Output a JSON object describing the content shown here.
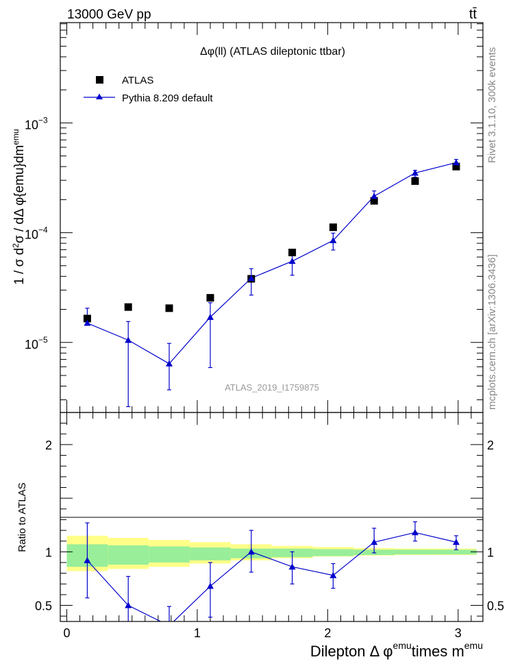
{
  "header": {
    "energy_label": "13000 GeV pp",
    "process_label": "tt̄",
    "side_rivet": "Rivet 3.1.10,  300k events",
    "side_mcplots": "mcplots.cern.ch [arXiv:1306.3436]"
  },
  "colors": {
    "data": "#000000",
    "mc": "#0000cc",
    "band_inner": "#99ee99",
    "band_outer": "#ffff88"
  },
  "chart_data": [
    {
      "type": "scatter",
      "title": "Δφ(ll) (ATLAS dileptonic ttbar)",
      "analysis_label": "ATLAS_2019_I1759875",
      "ylabel": "1 / σ d²σ / dΔ φ{emu}dm^emu",
      "yscale": "log",
      "ylim": [
        2.3e-06,
        0.0082
      ],
      "xlim": [
        -0.05,
        3.19
      ],
      "yticks_major": [
        {
          "value": 1e-05,
          "base": "10",
          "exp": "−5"
        },
        {
          "value": 0.0001,
          "base": "10",
          "exp": "−4"
        },
        {
          "value": 0.001,
          "base": "10",
          "exp": "−3"
        }
      ],
      "legend": [
        {
          "name": "ATLAS",
          "marker": "square"
        },
        {
          "name": "Pythia 8.209 default",
          "marker": "triangle"
        }
      ],
      "series": [
        {
          "name": "ATLAS",
          "x": [
            0.157,
            0.471,
            0.785,
            1.1,
            1.414,
            1.728,
            2.042,
            2.356,
            2.67,
            2.985
          ],
          "y": [
            1.65e-05,
            2.1e-05,
            2.05e-05,
            2.55e-05,
            3.8e-05,
            6.6e-05,
            0.000112,
            0.000195,
            0.000295,
            0.0004
          ]
        },
        {
          "name": "Pythia 8.209 default",
          "x": [
            0.157,
            0.471,
            0.785,
            1.1,
            1.414,
            1.728,
            2.042,
            2.356,
            2.67,
            2.985
          ],
          "y": [
            1.5e-05,
            1.05e-05,
            6.4e-06,
            1.7e-05,
            3.85e-05,
            5.5e-05,
            8.5e-05,
            0.000215,
            0.00035,
            0.000435
          ],
          "err_low": [
            1.45e-05,
            2.6e-06,
            3.7e-06,
            5.9e-06,
            2.7e-05,
            4.1e-05,
            6.95e-05,
            0.000188,
            0.00032,
            0.000405
          ],
          "err_high": [
            2.05e-05,
            1.55e-05,
            9.8e-06,
            2.3e-05,
            4.7e-05,
            6.6e-05,
            9.9e-05,
            0.00024,
            0.00037,
            0.000465
          ]
        }
      ]
    },
    {
      "type": "scatter",
      "ylabel": "Ratio to ATLAS",
      "xlabel_main": "Dilepton Δ φ",
      "xlabel_sup1": "emu",
      "xlabel_mid": "times m",
      "xlabel_sup2": "emu",
      "ylim": [
        0.35,
        2.3
      ],
      "xlim": [
        -0.05,
        3.19
      ],
      "yticks": [
        0.5,
        1,
        2
      ],
      "ytick_labels": [
        "0.5",
        "1",
        "2"
      ],
      "xticks": [
        0,
        1,
        2,
        3
      ],
      "xtick_labels": [
        "0",
        "1",
        "2",
        "3"
      ],
      "band": {
        "edges": [
          0.0,
          0.314,
          0.628,
          0.942,
          1.257,
          1.571,
          1.885,
          2.199,
          2.513,
          2.827,
          3.142
        ],
        "inner_low": [
          0.86,
          0.88,
          0.9,
          0.92,
          0.94,
          0.95,
          0.96,
          0.97,
          0.975,
          0.975
        ],
        "inner_high": [
          1.07,
          1.06,
          1.05,
          1.04,
          1.03,
          1.03,
          1.025,
          1.02,
          1.02,
          1.02
        ],
        "outer_low": [
          0.82,
          0.84,
          0.86,
          0.89,
          0.92,
          0.94,
          0.955,
          0.965,
          0.97,
          0.97
        ],
        "outer_high": [
          1.15,
          1.13,
          1.11,
          1.09,
          1.07,
          1.055,
          1.045,
          1.035,
          1.03,
          1.03
        ]
      },
      "series": [
        {
          "name": "Pythia 8.209 default / ATLAS",
          "x": [
            0.157,
            0.471,
            0.785,
            1.1,
            1.414,
            1.728,
            2.042,
            2.356,
            2.67,
            2.985
          ],
          "y": [
            0.92,
            0.5,
            0.31,
            0.68,
            1.0,
            0.86,
            0.78,
            1.09,
            1.18,
            1.09
          ],
          "err_low": [
            0.57,
            0.13,
            0.13,
            0.39,
            0.81,
            0.7,
            0.66,
            0.99,
            1.1,
            1.02
          ],
          "err_high": [
            1.27,
            0.77,
            0.49,
            0.9,
            1.2,
            1.0,
            0.89,
            1.22,
            1.28,
            1.15
          ]
        }
      ]
    }
  ]
}
